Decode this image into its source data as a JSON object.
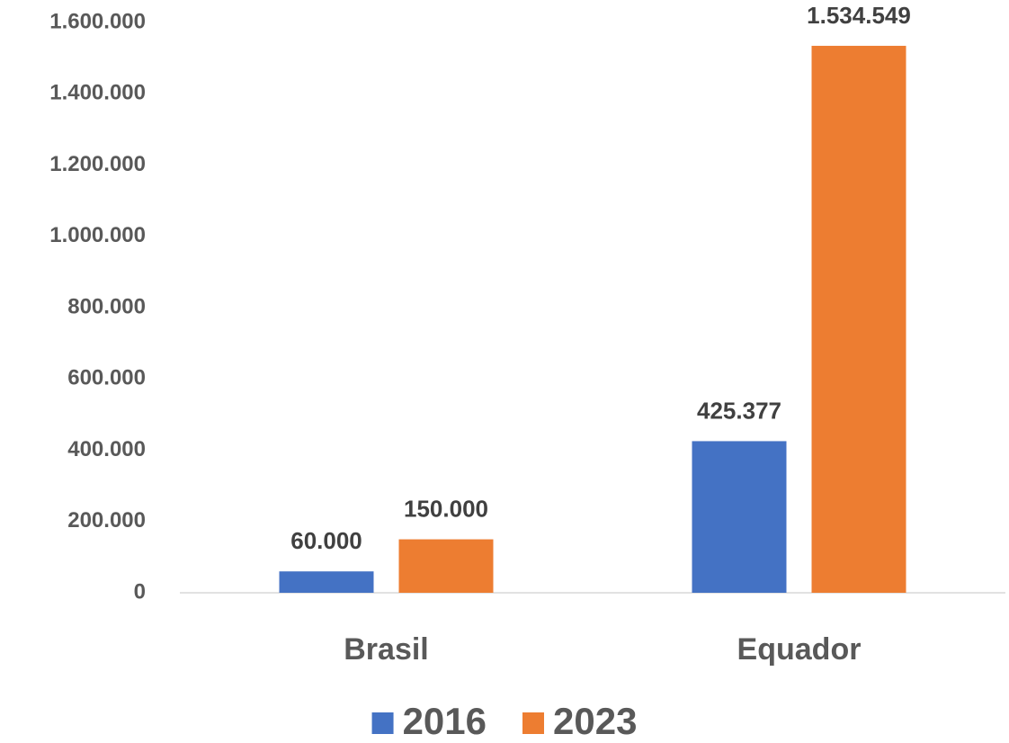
{
  "chart_data": {
    "type": "bar",
    "categories": [
      "Brasil",
      "Equador"
    ],
    "series": [
      {
        "name": "2016",
        "color": "#4472c4",
        "values": [
          60000,
          425377
        ],
        "value_labels": [
          "60.000",
          "425.377"
        ]
      },
      {
        "name": "2023",
        "color": "#ed7d31",
        "values": [
          150000,
          1534549
        ],
        "value_labels": [
          "150.000",
          "1.534.549"
        ]
      }
    ],
    "ylim": [
      0,
      1600000
    ],
    "yticks": [
      {
        "value": 0,
        "label": "0"
      },
      {
        "value": 200000,
        "label": "200.000"
      },
      {
        "value": 400000,
        "label": "400.000"
      },
      {
        "value": 600000,
        "label": "600.000"
      },
      {
        "value": 800000,
        "label": "800.000"
      },
      {
        "value": 1000000,
        "label": "1.000.000"
      },
      {
        "value": 1200000,
        "label": "1.200.000"
      },
      {
        "value": 1400000,
        "label": "1.400.000"
      },
      {
        "value": 1600000,
        "label": "1.600.000"
      }
    ],
    "legend": "bottom"
  }
}
